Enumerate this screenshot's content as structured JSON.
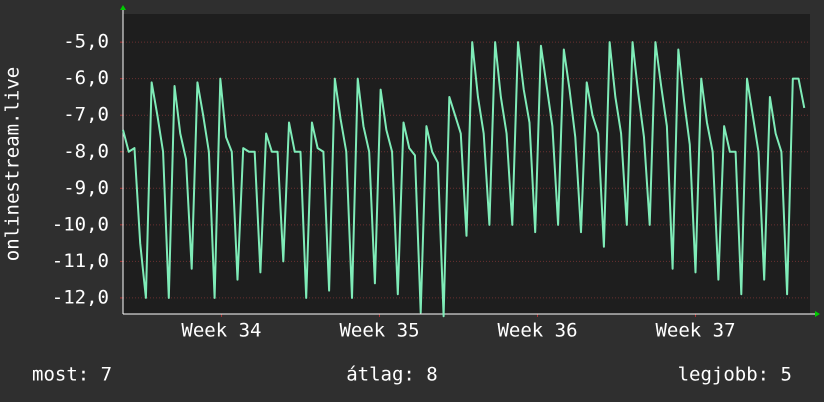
{
  "chart_data": {
    "type": "line",
    "y_label": "onlinestream.live",
    "x": [
      0,
      0.25,
      0.5,
      0.75,
      1,
      1.25,
      1.5,
      1.75,
      2,
      2.25,
      2.5,
      2.75,
      3,
      3.25,
      3.5,
      3.75,
      4,
      4.25,
      4.5,
      4.75,
      5,
      5.25,
      5.5,
      5.75,
      6,
      6.25,
      6.5,
      6.75,
      7,
      7.25,
      7.5,
      7.75,
      8,
      8.25,
      8.5,
      8.75,
      9,
      9.25,
      9.5,
      9.75,
      10,
      10.25,
      10.5,
      10.75,
      11,
      11.25,
      11.5,
      11.75,
      12,
      12.25,
      12.5,
      12.75,
      13,
      13.25,
      13.5,
      13.75,
      14,
      14.25,
      14.5,
      14.75,
      15,
      15.25,
      15.5,
      15.75,
      16,
      16.25,
      16.5,
      16.75,
      17,
      17.25,
      17.5,
      17.75,
      18,
      18.25,
      18.5,
      18.75,
      19,
      19.25,
      19.5,
      19.75,
      20,
      20.25,
      20.5,
      20.75,
      21,
      21.25,
      21.5,
      21.75,
      22,
      22.25,
      22.5,
      22.75,
      23,
      23.25,
      23.5,
      23.75,
      24,
      24.25,
      24.5,
      24.75,
      25,
      25.25,
      25.5,
      25.75,
      26,
      26.25,
      26.5,
      26.75,
      27,
      27.25,
      27.5,
      27.75,
      28,
      28.25,
      28.5,
      28.75,
      29,
      29.25,
      29.5,
      29.75
    ],
    "series": [
      {
        "name": "onlinestream.live",
        "color": "#7fecb8",
        "values": [
          -7.4,
          -8.0,
          -7.9,
          -10.5,
          -12.0,
          -6.1,
          -7.0,
          -8.0,
          -12.0,
          -6.2,
          -7.5,
          -8.2,
          -11.2,
          -6.1,
          -7.0,
          -8.0,
          -12.0,
          -6.0,
          -7.6,
          -8.0,
          -11.5,
          -7.9,
          -8.0,
          -8.0,
          -11.3,
          -7.5,
          -8.0,
          -8.0,
          -11.0,
          -7.2,
          -8.0,
          -8.0,
          -12.0,
          -7.2,
          -7.9,
          -8.0,
          -11.8,
          -6.0,
          -7.1,
          -8.0,
          -12.0,
          -6.0,
          -7.3,
          -8.0,
          -11.6,
          -6.3,
          -7.4,
          -8.0,
          -11.9,
          -7.2,
          -7.9,
          -8.1,
          -12.4,
          -7.3,
          -8.0,
          -8.3,
          -12.5,
          -6.5,
          -7.0,
          -7.5,
          -10.3,
          -5.0,
          -6.5,
          -7.5,
          -10.0,
          -5.0,
          -6.5,
          -7.5,
          -10.0,
          -5.0,
          -6.3,
          -7.2,
          -10.2,
          -5.1,
          -6.2,
          -7.3,
          -10.0,
          -5.2,
          -6.3,
          -7.6,
          -10.2,
          -6.1,
          -7.0,
          -7.5,
          -10.6,
          -5.0,
          -6.5,
          -7.5,
          -10.0,
          -5.0,
          -6.4,
          -7.6,
          -10.0,
          -5.0,
          -6.2,
          -7.3,
          -11.2,
          -5.2,
          -6.6,
          -7.8,
          -11.3,
          -6.0,
          -7.2,
          -8.0,
          -11.5,
          -7.3,
          -8.0,
          -8.0,
          -11.9,
          -6.0,
          -7.0,
          -8.0,
          -11.5,
          -6.5,
          -7.5,
          -8.0,
          -11.9,
          -6.0,
          -6.0,
          -6.8
        ]
      }
    ],
    "xlim": [
      0,
      30
    ],
    "xticks": [
      {
        "value": 4.3,
        "label": "Week 34"
      },
      {
        "value": 11.2,
        "label": "Week 35"
      },
      {
        "value": 18.1,
        "label": "Week 36"
      },
      {
        "value": 25.0,
        "label": "Week 37"
      }
    ],
    "ylim": [
      -12.44,
      -4.23
    ],
    "yticks": [
      {
        "value": -5,
        "label": "-5,0"
      },
      {
        "value": -6,
        "label": "-6,0"
      },
      {
        "value": -7,
        "label": "-7,0"
      },
      {
        "value": -8,
        "label": "-8,0"
      },
      {
        "value": -9,
        "label": "-9,0"
      },
      {
        "value": -10,
        "label": "-10,0"
      },
      {
        "value": -11,
        "label": "-11,0"
      },
      {
        "value": -12,
        "label": "-12,0"
      }
    ],
    "grid": true,
    "footer": [
      "most: 7",
      "átlag: 8",
      "legjobb: 5"
    ]
  }
}
